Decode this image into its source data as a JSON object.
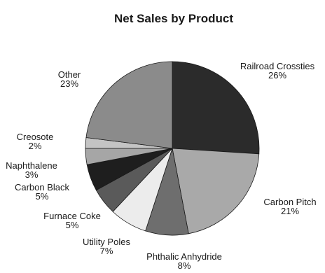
{
  "chart_data": {
    "type": "pie",
    "title": "Net Sales by Product",
    "start": "12 o'clock",
    "direction": "clockwise",
    "slices": [
      {
        "label": "Railroad Crossties",
        "value": 26,
        "value_label": "26%",
        "color": "#2b2b2b"
      },
      {
        "label": "Carbon Pitch",
        "value": 21,
        "value_label": "21%",
        "color": "#a9a9a9"
      },
      {
        "label": "Phthalic Anhydride",
        "value": 8,
        "value_label": "8%",
        "color": "#6e6e6e"
      },
      {
        "label": "Utility Poles",
        "value": 7,
        "value_label": "7%",
        "color": "#ececec"
      },
      {
        "label": "Furnace Coke",
        "value": 5,
        "value_label": "5%",
        "color": "#5a5a5a"
      },
      {
        "label": "Carbon Black",
        "value": 5,
        "value_label": "5%",
        "color": "#1e1e1e"
      },
      {
        "label": "Naphthalene",
        "value": 3,
        "value_label": "3%",
        "color": "#a6a6a6"
      },
      {
        "label": "Creosote",
        "value": 2,
        "value_label": "2%",
        "color": "#c4c4c4"
      },
      {
        "label": "Other",
        "value": 23,
        "value_label": "23%",
        "color": "#8b8b8b"
      }
    ]
  }
}
